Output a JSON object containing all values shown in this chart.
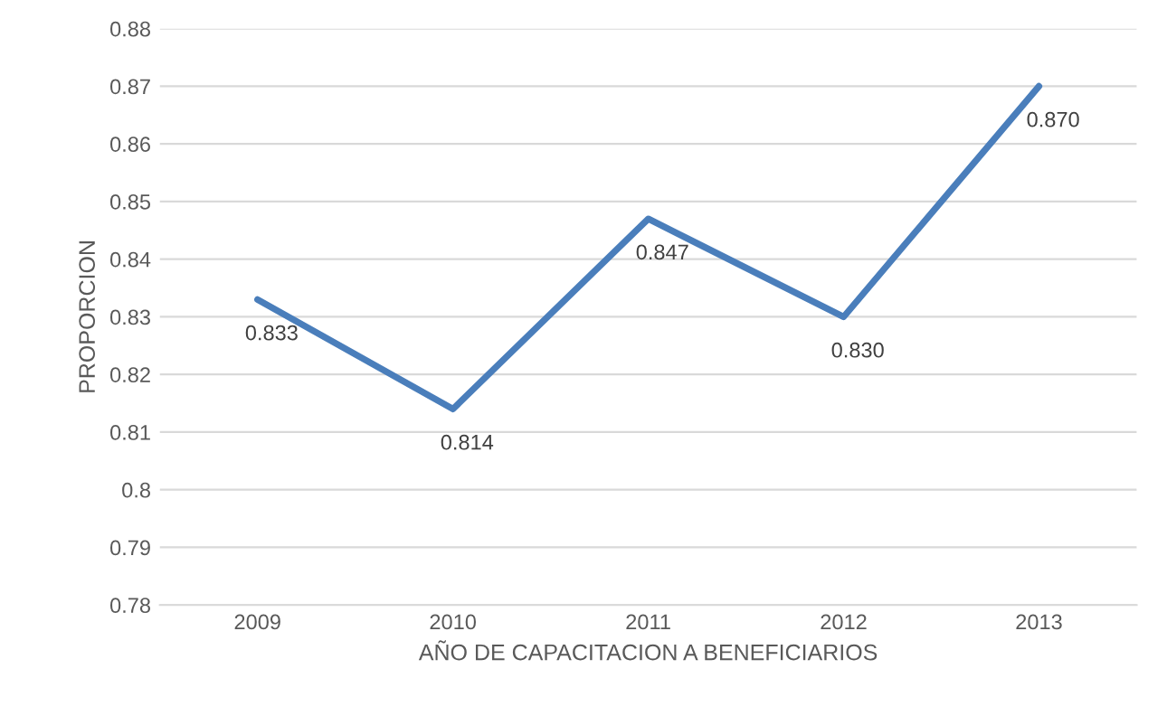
{
  "chart_data": {
    "type": "line",
    "xlabel": "AÑO DE CAPACITACION A BENEFICIARIOS",
    "ylabel": "PROPORCION",
    "categories": [
      "2009",
      "2010",
      "2011",
      "2012",
      "2013"
    ],
    "series": [
      {
        "color": "#4a7ebb",
        "values": [
          0.833,
          0.814,
          0.847,
          0.83,
          0.87
        ],
        "value_labels": [
          "0.833",
          "0.814",
          "0.847",
          "0.830",
          "0.870"
        ]
      }
    ],
    "ylim": [
      0.78,
      0.88
    ],
    "yticks": [
      0.78,
      0.79,
      0.8,
      0.81,
      0.82,
      0.83,
      0.84,
      0.85,
      0.86,
      0.87,
      0.88
    ],
    "grid": "y",
    "legend": false,
    "marker": "none",
    "line_style": "solid"
  }
}
